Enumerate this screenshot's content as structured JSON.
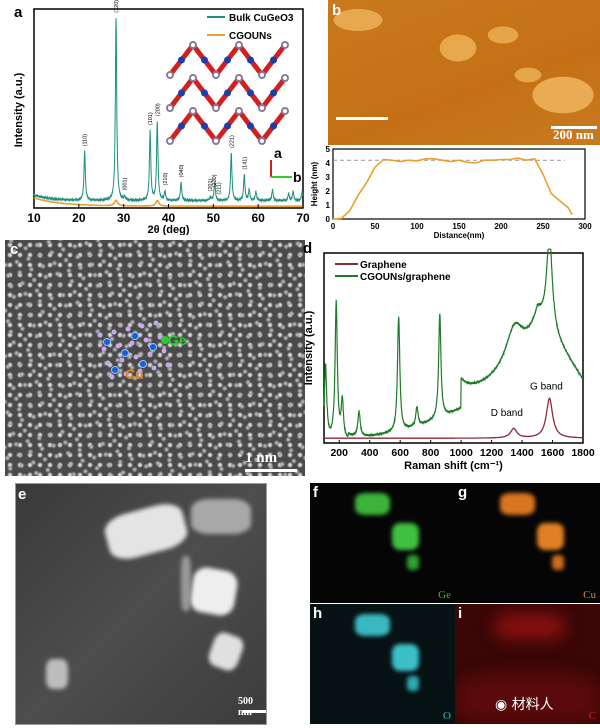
{
  "panels": {
    "a": "a",
    "b": "b",
    "c": "c",
    "d": "d",
    "e": "e",
    "f": "f",
    "g": "g",
    "h": "h",
    "i": "i"
  },
  "afm": {
    "scale_bar": "200 nm",
    "axis_a": "a",
    "axis_b": "b"
  },
  "tem": {
    "scale_bar": "1 nm",
    "label_ge": "Ge",
    "label_cu": "Cu"
  },
  "stem": {
    "scale_bar": "500 nm"
  },
  "eds": {
    "f": "Ge",
    "g": "Cu",
    "h": "O",
    "i": "C",
    "watermark": "材料人"
  },
  "colors": {
    "bulk": "#1e8f80",
    "cgouns": "#e8a030",
    "profile": "#e8a030",
    "graphene": "#8b2b3a",
    "cgouns_graphene": "#1f7a2a"
  },
  "chart_data": [
    {
      "type": "line",
      "panel": "a",
      "xlabel": "2θ (deg)",
      "ylabel": "Intensity (a.u.)",
      "xlim": [
        10,
        70
      ],
      "xticks": [
        10,
        20,
        30,
        40,
        50,
        60,
        70
      ],
      "legend": "top-right",
      "series": [
        {
          "name": "Bulk CuGeO3",
          "peaks": [
            [
              21.3,
              0.27
            ],
            [
              28.3,
              1.0
            ],
            [
              30.2,
              0.02
            ],
            [
              35.9,
              0.38
            ],
            [
              37.5,
              0.43
            ],
            [
              39.2,
              0.05
            ],
            [
              42.8,
              0.1
            ],
            [
              49.3,
              0.02
            ],
            [
              50.3,
              0.1
            ],
            [
              54.0,
              0.26
            ],
            [
              56.9,
              0.14
            ],
            [
              58.0,
              0.06
            ],
            [
              59.5,
              0.05
            ],
            [
              63.2,
              0.06
            ],
            [
              66.8,
              0.04
            ],
            [
              67.8,
              0.05
            ],
            [
              69.8,
              0.05
            ]
          ]
        },
        {
          "name": "CGOUNs",
          "peaks": [
            [
              28.3,
              0.03
            ],
            [
              37.5,
              0.03
            ]
          ]
        }
      ],
      "peak_labels": [
        {
          "x": 21.3,
          "text": "(110)"
        },
        {
          "x": 28.3,
          "text": "(120)"
        },
        {
          "x": 30.2,
          "text": "(001)"
        },
        {
          "x": 35.9,
          "text": "(101)"
        },
        {
          "x": 37.5,
          "text": "(200)"
        },
        {
          "x": 39.2,
          "text": "(210)"
        },
        {
          "x": 42.8,
          "text": "(040)"
        },
        {
          "x": 49.3,
          "text": "(201)"
        },
        {
          "x": 50.1,
          "text": "(230)"
        },
        {
          "x": 51.1,
          "text": "(211)"
        },
        {
          "x": 54.0,
          "text": "(221)"
        },
        {
          "x": 56.9,
          "text": "(141)"
        }
      ]
    },
    {
      "type": "line",
      "panel": "b",
      "xlabel": "Distance(nm)",
      "ylabel": "Height (nm)",
      "xlim": [
        0,
        300
      ],
      "ylim": [
        0,
        5
      ],
      "xticks": [
        0,
        50,
        100,
        150,
        200,
        250,
        300
      ],
      "yticks": [
        0,
        1,
        2,
        3,
        4,
        5
      ],
      "reference_line": 4.2,
      "x": [
        0,
        10,
        20,
        30,
        40,
        50,
        60,
        70,
        80,
        90,
        100,
        110,
        120,
        130,
        140,
        150,
        160,
        170,
        180,
        190,
        200,
        210,
        220,
        230,
        240,
        250,
        260,
        270,
        280,
        285
      ],
      "y": [
        0,
        0.05,
        0.6,
        1.7,
        2.6,
        3.7,
        4.25,
        4.2,
        4.1,
        4.2,
        4.15,
        4.3,
        4.3,
        4.2,
        4.1,
        4.2,
        4.05,
        4.0,
        4.2,
        4.2,
        4.25,
        4.25,
        4.35,
        4.2,
        4.3,
        3.2,
        1.8,
        1.3,
        0.8,
        0.3
      ]
    },
    {
      "type": "line",
      "panel": "d",
      "xlabel": "Raman shift (cm⁻¹)",
      "ylabel": "Intensity (a.u.)",
      "xlim": [
        100,
        1800
      ],
      "xticks": [
        200,
        400,
        600,
        800,
        1000,
        1200,
        1400,
        1600,
        1800
      ],
      "legend": "top-left",
      "series": [
        {
          "name": "Graphene",
          "peaks": [
            [
              1345,
              0.05
            ],
            [
              1580,
              0.21
            ]
          ]
        },
        {
          "name": "CGOUNs/graphene",
          "peaks": [
            [
              110,
              0.4
            ],
            [
              180,
              0.72
            ],
            [
              220,
              0.2
            ],
            [
              330,
              0.13
            ],
            [
              590,
              0.6
            ],
            [
              710,
              0.1
            ],
            [
              860,
              0.55
            ],
            [
              1350,
              0.2
            ],
            [
              1580,
              0.5
            ]
          ]
        }
      ],
      "annotations": [
        "D band",
        "G band"
      ]
    }
  ]
}
